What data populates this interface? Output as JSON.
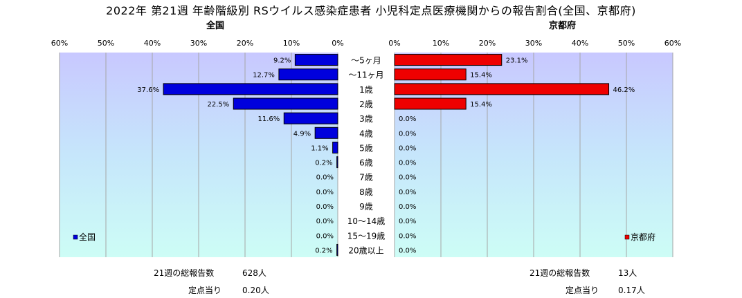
{
  "chart_data": {
    "type": "bar",
    "title": "2022年 第21週 年齢階級別 RSウイルス感染症患者 小児科定点医療機関からの報告割合(全国、京都府)",
    "categories": [
      "～5ヶ月",
      "～11ヶ月",
      "1歳",
      "2歳",
      "3歳",
      "4歳",
      "5歳",
      "6歳",
      "7歳",
      "8歳",
      "9歳",
      "10～14歳",
      "15～19歳",
      "20歳以上"
    ],
    "xlim": [
      0,
      60
    ],
    "tick_labels": [
      "0%",
      "10%",
      "20%",
      "30%",
      "40%",
      "50%",
      "60%"
    ],
    "grid": true,
    "series": [
      {
        "name": "全国",
        "subtitle": "全国",
        "color": "#0000dd",
        "values": [
          9.2,
          12.7,
          37.6,
          22.5,
          11.6,
          4.9,
          1.1,
          0.2,
          0.0,
          0.0,
          0.0,
          0.0,
          0.0,
          0.2
        ],
        "labels": [
          "9.2%",
          "12.7%",
          "37.6%",
          "22.5%",
          "11.6%",
          "4.9%",
          "1.1%",
          "0.2%",
          "0.0%",
          "0.0%",
          "0.0%",
          "0.0%",
          "0.0%",
          "0.2%"
        ],
        "legend_position": "bottom-left"
      },
      {
        "name": "京都府",
        "subtitle": "京都府",
        "color": "#ee0000",
        "values": [
          23.1,
          15.4,
          46.2,
          15.4,
          0.0,
          0.0,
          0.0,
          0.0,
          0.0,
          0.0,
          0.0,
          0.0,
          0.0,
          0.0
        ],
        "labels": [
          "23.1%",
          "15.4%",
          "46.2%",
          "15.4%",
          "0.0%",
          "0.0%",
          "0.0%",
          "0.0%",
          "0.0%",
          "0.0%",
          "0.0%",
          "0.0%",
          "0.0%",
          "0.0%"
        ],
        "legend_position": "bottom-right"
      }
    ]
  },
  "footer": {
    "left": {
      "total_label": "21週の総報告数",
      "total_value": "628人",
      "per_label": "定点当り",
      "per_value": "0.20人"
    },
    "right": {
      "total_label": "21週の総報告数",
      "total_value": "13人",
      "per_label": "定点当り",
      "per_value": "0.17人"
    }
  }
}
